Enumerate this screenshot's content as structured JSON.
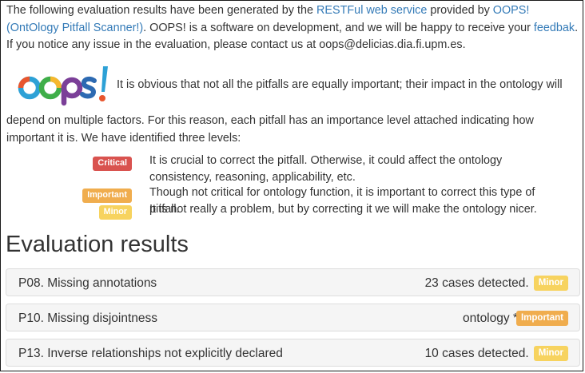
{
  "intro": {
    "part1": "The following evaluation results have been generated by the ",
    "link1": "RESTFul web service",
    "part2": " provided by ",
    "link2": "OOPS! (OntOlogy Pitfall Scanner!)",
    "part3": ". OOPS! is a software on development, and we will be happy to receive your ",
    "link3": "feedbak",
    "part4": ". If you notice any issue in the evaluation, please contact us at oops@delicias.dia.fi.upm.es."
  },
  "logo": {
    "text": "oops!",
    "colors": [
      "#e8562e",
      "#2da1d6",
      "#f6b72d",
      "#3fae49",
      "#7b3f98",
      "#2d6ab2"
    ]
  },
  "importance": {
    "first_line": "It is obvious that not all the pitfalls are equally important; their impact in the ontology will",
    "rest": "depend on multiple factors. For this reason, each pitfall has an importance level attached indicating how important it is. We have identified three levels:"
  },
  "levels": [
    {
      "badge": "Critical",
      "color": "#d9534f",
      "text": "It is crucial to correct the pitfall. Otherwise, it could affect the ontology consistency, reasoning, applicability, etc."
    },
    {
      "badge": "Important",
      "color": "#f0ad4e",
      "text": "Though not critical for ontology function, it is important to correct this type of pitfall."
    },
    {
      "badge": "Minor",
      "color": "#f7d35f",
      "text": "It is not really a problem, but by correcting it we will make the ontology nicer."
    }
  ],
  "results": {
    "heading": "Evaluation results",
    "items": [
      {
        "title": "P08. Missing annotations",
        "detail": "23 cases detected.",
        "badge": "Minor"
      },
      {
        "title": "P10. Missing disjointness",
        "detail": "ontology *",
        "badge": "Important"
      },
      {
        "title": "P13. Inverse relationships not explicitly declared",
        "detail": "10 cases detected.",
        "badge": "Minor"
      }
    ]
  }
}
